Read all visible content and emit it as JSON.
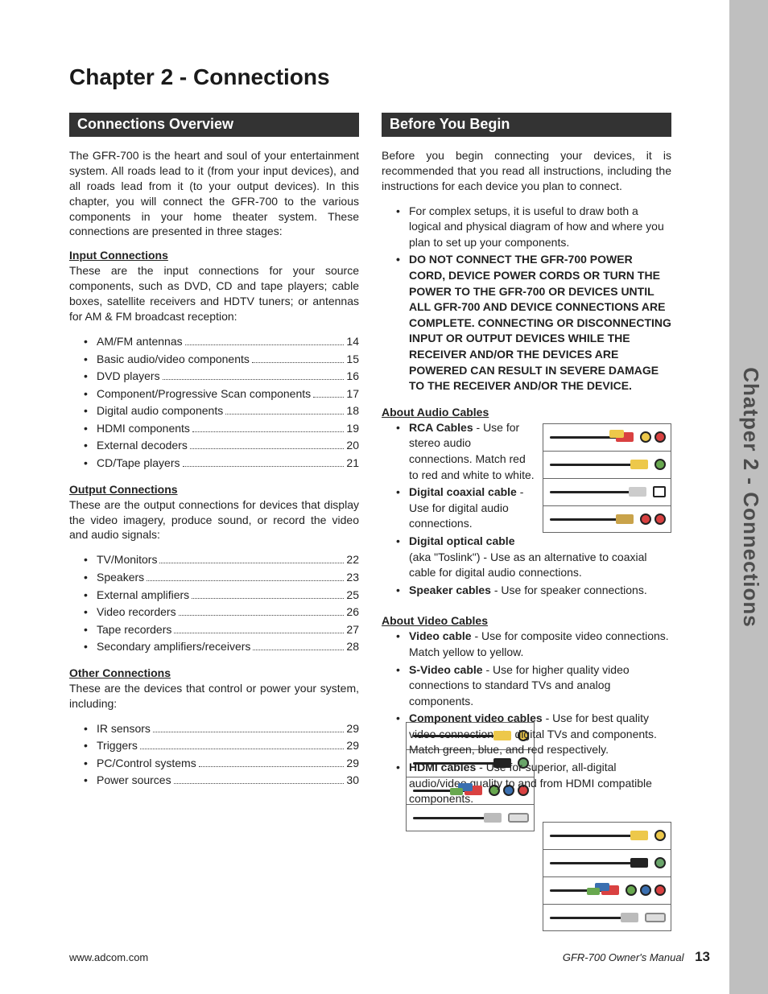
{
  "side_tab": "Chatper 2 - Connections",
  "chapter_title": "Chapter 2 - Connections",
  "left": {
    "heading": "Connections Overview",
    "intro": "The GFR-700 is the heart and soul of your entertainment system. All roads lead to it (from your input devices), and all roads lead from it (to your output devices). In this chapter, you will connect the GFR-700 to the various components in your home theater system. These connections are presented in three stages:",
    "groups": [
      {
        "title": "Input Connections",
        "desc": "These are the input connections for your source components, such as DVD, CD and tape players; cable boxes, satellite receivers and HDTV tuners; or antennas for AM & FM broadcast reception:",
        "items": [
          {
            "label": "AM/FM antennas",
            "page": "14"
          },
          {
            "label": "Basic audio/video components",
            "page": "15"
          },
          {
            "label": "DVD players",
            "page": "16"
          },
          {
            "label": "Component/Progressive Scan components",
            "page": "17"
          },
          {
            "label": "Digital audio components",
            "page": "18"
          },
          {
            "label": "HDMI components",
            "page": "19"
          },
          {
            "label": "External decoders",
            "page": "20"
          },
          {
            "label": "CD/Tape players",
            "page": "21"
          }
        ]
      },
      {
        "title": "Output Connections",
        "desc": "These are the output connections for devices that display the video imagery, produce sound, or record the video and audio signals:",
        "items": [
          {
            "label": "TV/Monitors",
            "page": "22"
          },
          {
            "label": "Speakers",
            "page": "23"
          },
          {
            "label": "External amplifiers",
            "page": "25"
          },
          {
            "label": "Video recorders",
            "page": "26"
          },
          {
            "label": "Tape recorders",
            "page": "27"
          },
          {
            "label": "Secondary amplifiers/receivers",
            "page": "28"
          }
        ]
      },
      {
        "title": "Other Connections",
        "desc": "These are the devices that control or power your system, including:",
        "items": [
          {
            "label": "IR sensors",
            "page": "29"
          },
          {
            "label": "Triggers",
            "page": "29"
          },
          {
            "label": "PC/Control systems",
            "page": "29"
          },
          {
            "label": "Power sources",
            "page": "30"
          }
        ]
      }
    ]
  },
  "right": {
    "heading": "Before You Begin",
    "intro": "Before you begin connecting your devices, it is recommended that you read all instructions, including the instructions for each device you plan to connect.",
    "pre_bullets": [
      {
        "text": "For complex setups, it is useful to draw both a logical and physical diagram of how and where you plan to set up your components.",
        "bold": false
      },
      {
        "text": "DO NOT CONNECT THE GFR-700 POWER CORD, DEVICE POWER CORDS OR TURN THE POWER TO THE GFR-700 OR DEVICES UNTIL ALL GFR-700 AND DEVICE CONNECTIONS ARE COMPLETE. CONNECTING OR DISCONNECTING INPUT OR OUTPUT DEVICES WHILE THE RECEIVER AND/OR THE DEVICES ARE POWERED CAN RESULT IN SEVERE DAMAGE TO THE RECEIVER AND/OR THE DEVICE.",
        "bold": true
      }
    ],
    "audio": {
      "title": "About Audio Cables",
      "items": [
        {
          "term": "RCA Cables",
          "desc": " - Use for stereo audio connections. Match red to red and white to white."
        },
        {
          "term": "Digital coaxial cable",
          "desc": " - Use for digital audio connections."
        },
        {
          "term": "Digital optical cable",
          "desc": " (aka \"Toslink\") - Use as an alternative to coaxial cable for digital audio connections."
        },
        {
          "term": "Speaker cables",
          "desc": " - Use for speaker connections."
        }
      ],
      "fig": [
        {
          "plug_color": "#d94141",
          "plug2_color": "#edc84a",
          "jacks": [
            {
              "color": "#edc84a"
            },
            {
              "color": "#d94141"
            }
          ],
          "double": true
        },
        {
          "plug_color": "#edc84a",
          "jacks": [
            {
              "color": "#68a84f"
            }
          ]
        },
        {
          "plug_color": "#cccccc",
          "jacks": [
            {
              "sq": true,
              "color": "#ffffff"
            }
          ]
        },
        {
          "plug_color": "#c9a34a",
          "jacks": [
            {
              "color": "#d94141"
            },
            {
              "color": "#d94141"
            }
          ]
        }
      ]
    },
    "video": {
      "title": "About Video Cables",
      "items": [
        {
          "term": "Video cable",
          "desc": " - Use for composite video connections. Match yellow to yellow."
        },
        {
          "term": "S-Video cable",
          "desc": " - Use for higher quality video connections to standard TVs and analog components."
        },
        {
          "term": "Component video cables",
          "desc": " - Use for best quality video connections to digital TVs and components. Match green, blue, and red respectively."
        },
        {
          "term": "HDMI cables",
          "desc": " - Use for superior, all-digital audio/video quality to and from HDMI compatible components."
        }
      ],
      "fig": [
        {
          "plug_color": "#edc84a",
          "jacks": [
            {
              "color": "#edc84a"
            }
          ]
        },
        {
          "plug_color": "#222222",
          "jacks": [
            {
              "color": "#6aa56a"
            }
          ]
        },
        {
          "plug_color": "#d94141",
          "plug2_color": "#3a6fb0",
          "plug3_color": "#68a84f",
          "jacks": [
            {
              "color": "#68a84f"
            },
            {
              "color": "#3a6fb0"
            },
            {
              "color": "#d94141"
            }
          ],
          "triple": true
        },
        {
          "plug_color": "#bbbbbb",
          "jacks": [
            {
              "hdmi": true
            }
          ]
        }
      ]
    }
  },
  "footer": {
    "url": "www.adcom.com",
    "manual": "GFR-700 Owner's Manual",
    "page": "13"
  },
  "colors": {
    "sidebar_bg": "#bfbfbf",
    "section_bg": "#333333"
  }
}
